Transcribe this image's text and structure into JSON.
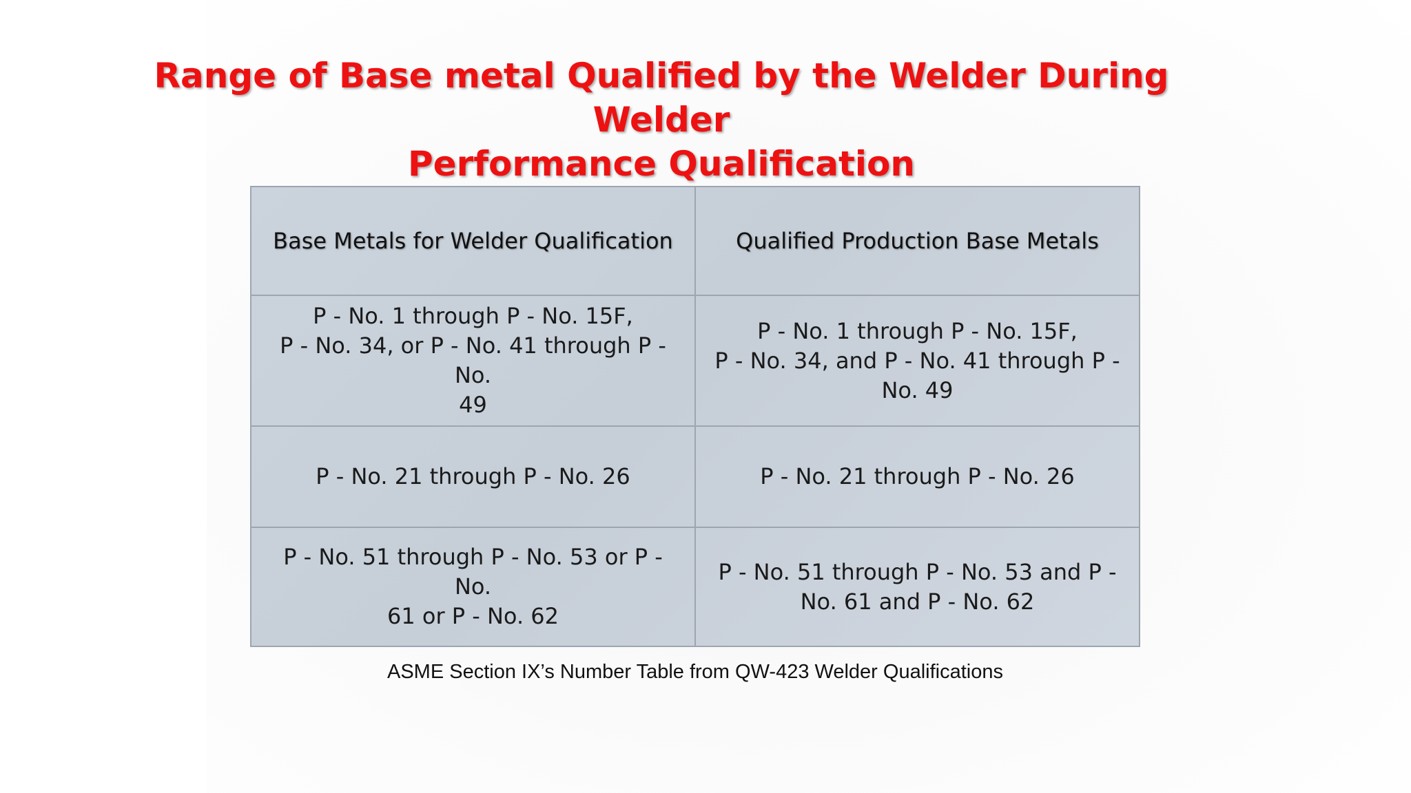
{
  "title": {
    "line1": "Range of Base metal Qualified by the Welder During Welder",
    "line2": "Performance Qualification"
  },
  "table": {
    "headers": [
      "Base Metals for Welder Qualification",
      "Qualified Production Base Metals"
    ],
    "rows": [
      [
        "P - No. 1 through P - No. 15F,\nP - No. 34, or P - No. 41 through P - No.\n49",
        "P - No. 1 through P - No. 15F,\nP - No. 34, and P - No. 41 through P -\nNo. 49"
      ],
      [
        "P - No. 21 through P - No. 26",
        "P - No. 21 through P - No. 26"
      ],
      [
        "P - No. 51 through P - No. 53 or P - No.\n61 or P - No. 62",
        "P - No. 51 through P - No. 53 and P -\nNo. 61 and P - No. 62"
      ]
    ]
  },
  "caption": "ASME Section IX’s Number Table from QW-423 Welder Qualifications",
  "colors": {
    "title": "#ee1111",
    "table_fill": "#c9d1db",
    "table_border": "#9ca5b0"
  }
}
